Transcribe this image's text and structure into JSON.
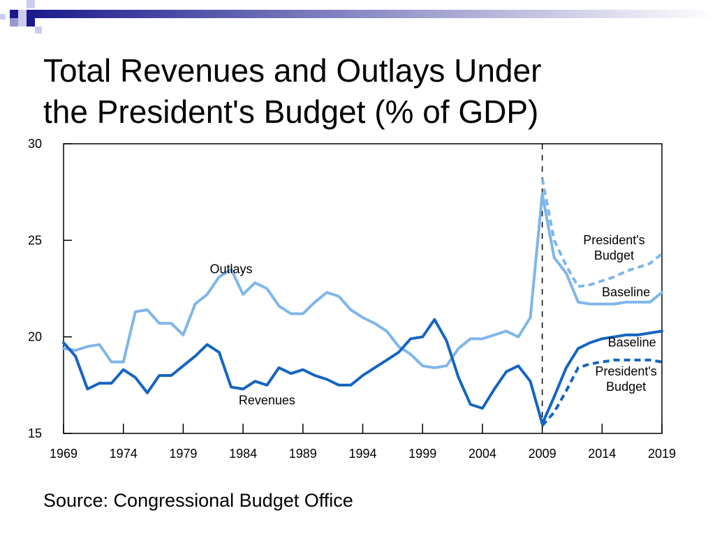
{
  "slide": {
    "title_line1": "Total Revenues and Outlays Under",
    "title_line2": "the President's Budget (% of GDP)",
    "source": "Source: Congressional Budget Office",
    "deco_colors": [
      "#1a1a8c",
      "#9999cc",
      "#ccccee"
    ]
  },
  "chart_data": {
    "type": "line",
    "title": "",
    "xlabel": "",
    "ylabel": "",
    "xlim": [
      1969,
      2019
    ],
    "ylim": [
      15,
      30
    ],
    "x_ticks": [
      1969,
      1974,
      1979,
      1984,
      1989,
      1994,
      1999,
      2004,
      2009,
      2014,
      2019
    ],
    "y_ticks": [
      15,
      20,
      25,
      30
    ],
    "grid": false,
    "legend": "none (lines labeled directly)",
    "vertical_marker_x": 2009,
    "annotations": [
      {
        "text": "Outlays",
        "x": 1983,
        "y": 23.3
      },
      {
        "text": "Revenues",
        "x": 1986,
        "y": 16.5
      },
      {
        "text": "President's",
        "x": 2015,
        "y": 24.8
      },
      {
        "text": "Budget",
        "x": 2015,
        "y": 24.0
      },
      {
        "text": "Baseline",
        "x": 2016,
        "y": 22.1
      },
      {
        "text": "Baseline",
        "x": 2016.5,
        "y": 19.5
      },
      {
        "text": "President's",
        "x": 2016,
        "y": 18.0
      },
      {
        "text": "Budget",
        "x": 2016,
        "y": 17.2
      }
    ],
    "series": [
      {
        "name": "Outlays",
        "color": "#7fb6ea",
        "dashed": false,
        "x": [
          1969,
          1970,
          1971,
          1972,
          1973,
          1974,
          1975,
          1976,
          1977,
          1978,
          1979,
          1980,
          1981,
          1982,
          1983,
          1984,
          1985,
          1986,
          1987,
          1988,
          1989,
          1990,
          1991,
          1992,
          1993,
          1994,
          1995,
          1996,
          1997,
          1998,
          1999,
          2000,
          2001,
          2002,
          2003,
          2004,
          2005,
          2006,
          2007,
          2008,
          2009,
          2010,
          2011,
          2012,
          2013,
          2014,
          2015,
          2016,
          2017,
          2018,
          2019
        ],
        "y": [
          19.4,
          19.3,
          19.5,
          19.6,
          18.7,
          18.7,
          21.3,
          21.4,
          20.7,
          20.7,
          20.1,
          21.7,
          22.2,
          23.1,
          23.5,
          22.2,
          22.8,
          22.5,
          21.6,
          21.2,
          21.2,
          21.8,
          22.3,
          22.1,
          21.4,
          21.0,
          20.7,
          20.3,
          19.5,
          19.1,
          18.5,
          18.4,
          18.5,
          19.4,
          19.9,
          19.9,
          20.1,
          20.3,
          20.0,
          21.0,
          27.4,
          24.1,
          23.3,
          21.8,
          21.7,
          21.7,
          21.7,
          21.8,
          21.8,
          21.8,
          22.3
        ]
      },
      {
        "name": "Outlays — President's Budget",
        "color": "#7fb6ea",
        "dashed": true,
        "x": [
          2009,
          2010,
          2011,
          2012,
          2013,
          2014,
          2015,
          2016,
          2017,
          2018,
          2019
        ],
        "y": [
          28.2,
          25.0,
          23.7,
          22.6,
          22.7,
          22.9,
          23.1,
          23.4,
          23.6,
          23.8,
          24.3
        ]
      },
      {
        "name": "Revenues",
        "color": "#1565c0",
        "dashed": false,
        "x": [
          1969,
          1970,
          1971,
          1972,
          1973,
          1974,
          1975,
          1976,
          1977,
          1978,
          1979,
          1980,
          1981,
          1982,
          1983,
          1984,
          1985,
          1986,
          1987,
          1988,
          1989,
          1990,
          1991,
          1992,
          1993,
          1994,
          1995,
          1996,
          1997,
          1998,
          1999,
          2000,
          2001,
          2002,
          2003,
          2004,
          2005,
          2006,
          2007,
          2008,
          2009,
          2010,
          2011,
          2012,
          2013,
          2014,
          2015,
          2016,
          2017,
          2018,
          2019
        ],
        "y": [
          19.7,
          19.0,
          17.3,
          17.6,
          17.6,
          18.3,
          17.9,
          17.1,
          18.0,
          18.0,
          18.5,
          19.0,
          19.6,
          19.2,
          17.4,
          17.3,
          17.7,
          17.5,
          18.4,
          18.1,
          18.3,
          18.0,
          17.8,
          17.5,
          17.5,
          18.0,
          18.4,
          18.8,
          19.2,
          19.9,
          20.0,
          20.9,
          19.8,
          17.9,
          16.5,
          16.3,
          17.3,
          18.2,
          18.5,
          17.7,
          15.5,
          16.9,
          18.4,
          19.4,
          19.7,
          19.9,
          20.0,
          20.1,
          20.1,
          20.2,
          20.3
        ]
      },
      {
        "name": "Revenues — President's Budget",
        "color": "#1565c0",
        "dashed": true,
        "x": [
          2009,
          2010,
          2011,
          2012,
          2013,
          2014,
          2015,
          2016,
          2017,
          2018,
          2019
        ],
        "y": [
          15.4,
          16.1,
          17.2,
          18.4,
          18.6,
          18.7,
          18.8,
          18.8,
          18.8,
          18.8,
          18.7
        ]
      }
    ]
  }
}
